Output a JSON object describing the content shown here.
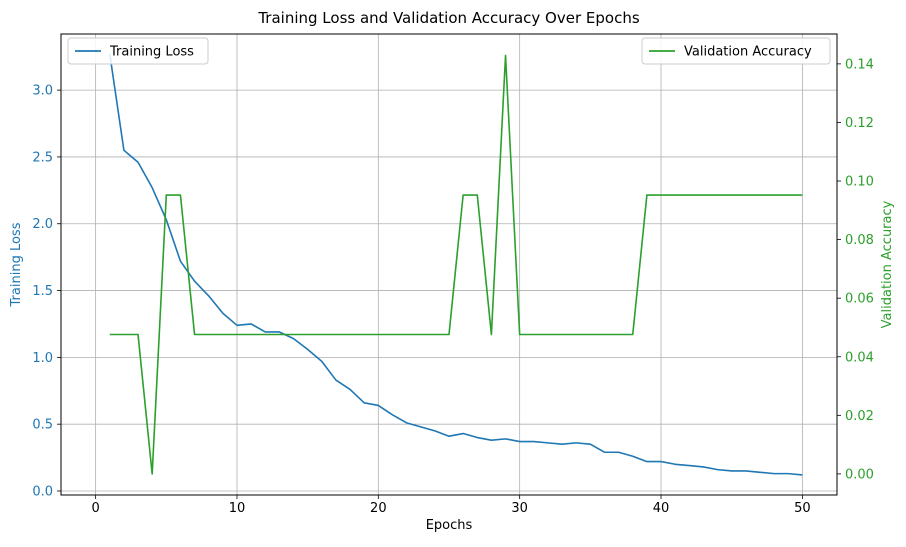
{
  "chart_data": {
    "type": "line",
    "title": "Training Loss and Validation Accuracy Over Epochs",
    "xlabel": "Epochs",
    "xlim": [
      -2.45,
      52.45
    ],
    "xticks": [
      0,
      10,
      20,
      30,
      40,
      50
    ],
    "grid": true,
    "left_axis": {
      "label": "Training Loss",
      "color": "#1f77b4",
      "ylim": [
        -0.03,
        3.42
      ],
      "ticks": [
        "0.0",
        "0.5",
        "1.0",
        "1.5",
        "2.0",
        "2.5",
        "3.0"
      ],
      "tick_values": [
        0.0,
        0.5,
        1.0,
        1.5,
        2.0,
        2.5,
        3.0
      ]
    },
    "right_axis": {
      "label": "Validation Accuracy",
      "color": "#2ca02c",
      "ylim": [
        -0.0072,
        0.1502
      ],
      "ticks": [
        "0.00",
        "0.02",
        "0.04",
        "0.06",
        "0.08",
        "0.10",
        "0.12",
        "0.14"
      ],
      "tick_values": [
        0.0,
        0.02,
        0.04,
        0.06,
        0.08,
        0.1,
        0.12,
        0.14
      ]
    },
    "x": [
      1,
      2,
      3,
      4,
      5,
      6,
      7,
      8,
      9,
      10,
      11,
      12,
      13,
      14,
      15,
      16,
      17,
      18,
      19,
      20,
      21,
      22,
      23,
      24,
      25,
      26,
      27,
      28,
      29,
      30,
      31,
      32,
      33,
      34,
      35,
      36,
      37,
      38,
      39,
      40,
      41,
      42,
      43,
      44,
      45,
      46,
      47,
      48,
      49,
      50
    ],
    "series": [
      {
        "name": "Training Loss",
        "axis": "left",
        "color": "#1f77b4",
        "values": [
          3.27,
          2.55,
          2.46,
          2.27,
          2.03,
          1.72,
          1.57,
          1.46,
          1.33,
          1.24,
          1.25,
          1.19,
          1.19,
          1.14,
          1.06,
          0.97,
          0.83,
          0.76,
          0.66,
          0.64,
          0.57,
          0.51,
          0.48,
          0.45,
          0.41,
          0.43,
          0.4,
          0.38,
          0.39,
          0.37,
          0.37,
          0.36,
          0.35,
          0.36,
          0.35,
          0.29,
          0.29,
          0.26,
          0.22,
          0.22,
          0.2,
          0.19,
          0.18,
          0.16,
          0.15,
          0.15,
          0.14,
          0.13,
          0.13,
          0.12
        ]
      },
      {
        "name": "Validation Accuracy",
        "axis": "right",
        "color": "#2ca02c",
        "values": [
          0.0476,
          0.0476,
          0.0476,
          0.0,
          0.0952,
          0.0952,
          0.0476,
          0.0476,
          0.0476,
          0.0476,
          0.0476,
          0.0476,
          0.0476,
          0.0476,
          0.0476,
          0.0476,
          0.0476,
          0.0476,
          0.0476,
          0.0476,
          0.0476,
          0.0476,
          0.0476,
          0.0476,
          0.0476,
          0.0952,
          0.0952,
          0.0476,
          0.1429,
          0.0476,
          0.0476,
          0.0476,
          0.0476,
          0.0476,
          0.0476,
          0.0476,
          0.0476,
          0.0476,
          0.0952,
          0.0952,
          0.0952,
          0.0952,
          0.0952,
          0.0952,
          0.0952,
          0.0952,
          0.0952,
          0.0952,
          0.0952,
          0.0952
        ]
      }
    ],
    "legends": [
      {
        "label": "Training Loss",
        "placement": "upper-left"
      },
      {
        "label": "Validation Accuracy",
        "placement": "upper-right"
      }
    ],
    "colors": {
      "grid": "#b0b0b0",
      "frame": "#000000",
      "text": "#000000"
    }
  }
}
